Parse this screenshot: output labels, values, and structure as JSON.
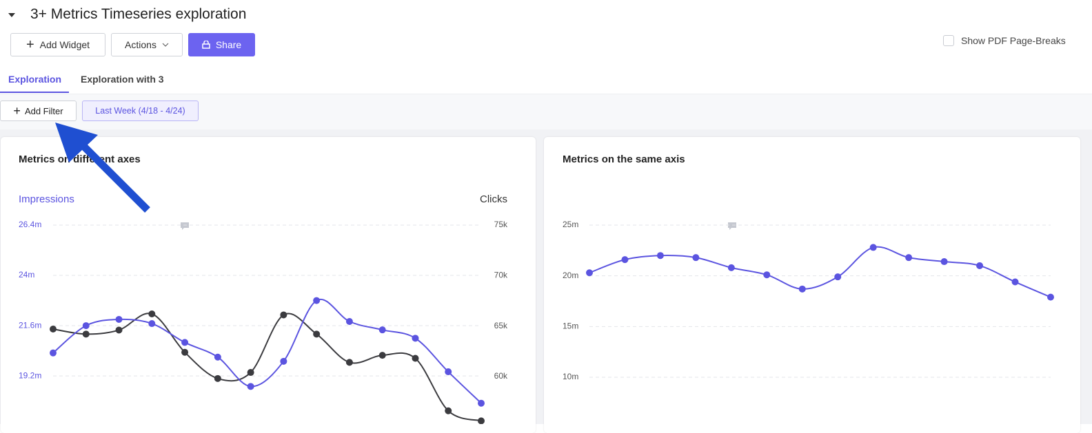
{
  "header": {
    "title": "3+ Metrics Timeseries exploration"
  },
  "toolbar": {
    "add_widget": "Add Widget",
    "actions": "Actions",
    "share": "Share",
    "pdf_checkbox": "Show PDF Page-Breaks"
  },
  "tabs": [
    "Exploration",
    "Exploration with 3"
  ],
  "filters": {
    "add": "Add Filter",
    "date_range": "Last Week (4/18 - 4/24)"
  },
  "chart_data": [
    {
      "type": "line",
      "title": "Metrics on different axes",
      "categories": [
        null,
        null,
        null,
        null,
        null,
        null,
        null,
        null,
        null,
        null,
        null,
        null,
        null,
        null
      ],
      "series": [
        {
          "name": "Clicks",
          "color": "#3b3b3f",
          "axis": "y2",
          "values": [
            64.7,
            64.2,
            64.6,
            66.2,
            62.4,
            59.8,
            60.4,
            66.1,
            64.2,
            61.4,
            62.1,
            61.8,
            56.6,
            55.6
          ]
        },
        {
          "name": "Impressions",
          "color": "#5b54e0",
          "values": [
            20.3,
            21.6,
            21.9,
            21.7,
            20.8,
            20.1,
            18.7,
            19.9,
            22.8,
            21.8,
            21.4,
            21.0,
            19.4,
            17.9
          ]
        }
      ],
      "ylim": [
        17.2,
        26.4
      ],
      "yticks": [
        {
          "value": 19.2,
          "label": "19.2m"
        },
        {
          "value": 21.6,
          "label": "21.6m"
        },
        {
          "value": 24,
          "label": "24m"
        },
        {
          "value": 26.4,
          "label": "26.4m"
        }
      ],
      "y2lim": [
        55.9,
        75
      ],
      "y2ticks": [
        {
          "value": 60,
          "label": "60k"
        },
        {
          "value": 65,
          "label": "65k"
        },
        {
          "value": 70,
          "label": "70k"
        },
        {
          "value": 75,
          "label": "75k"
        }
      ],
      "grid": true
    },
    {
      "type": "line",
      "title": "Metrics on the same axis",
      "categories": [
        null,
        null,
        null,
        null,
        null,
        null,
        null,
        null,
        null,
        null,
        null,
        null,
        null,
        null
      ],
      "series": [
        {
          "color": "#5b54e0",
          "values": [
            20.3,
            21.6,
            22.0,
            21.8,
            20.8,
            20.1,
            18.7,
            19.9,
            22.8,
            21.8,
            21.4,
            21.0,
            19.4,
            17.9
          ]
        }
      ],
      "ylim": [
        6,
        25
      ],
      "yticks": [
        {
          "value": 10,
          "label": "10m"
        },
        {
          "value": 15,
          "label": "15m"
        },
        {
          "value": 20,
          "label": "20m"
        },
        {
          "value": 25,
          "label": "25m"
        }
      ],
      "grid": true
    }
  ]
}
